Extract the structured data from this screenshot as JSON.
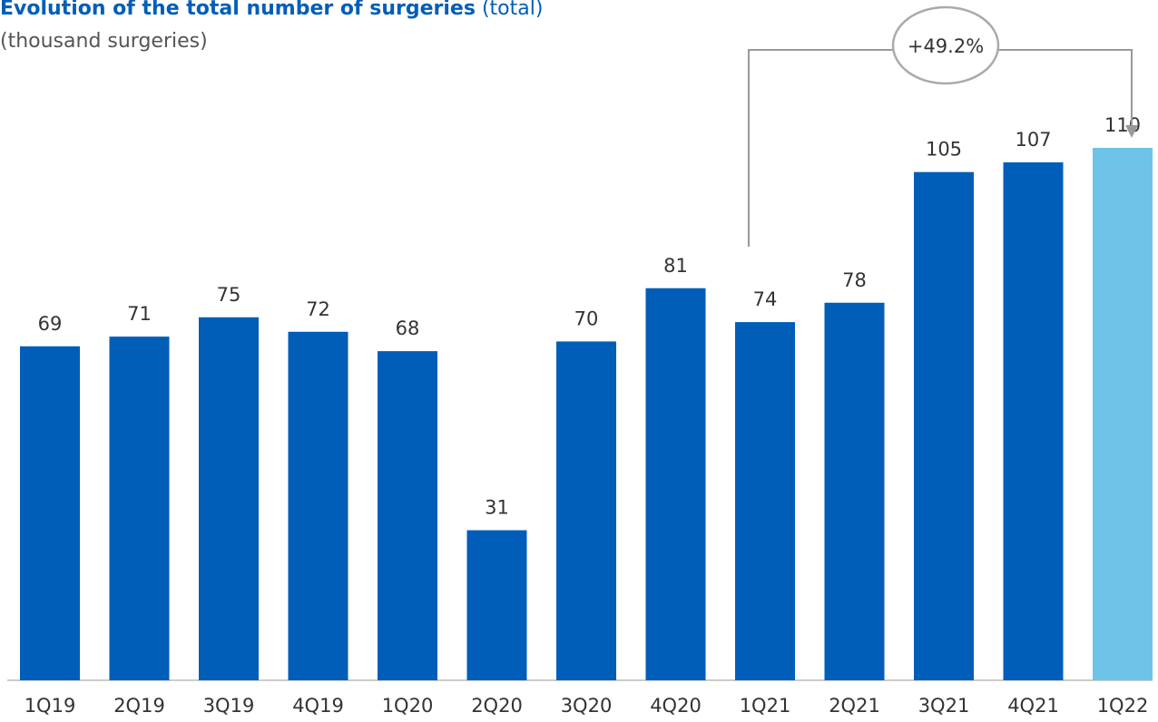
{
  "chart_data": {
    "type": "bar",
    "title": "Evolution of the total number of surgeries",
    "title_note": "(total)",
    "subtitle": "(thousand surgeries)",
    "annotation": "+49.2%",
    "categories": [
      "1Q19",
      "2Q19",
      "3Q19",
      "4Q19",
      "1Q20",
      "2Q20",
      "3Q20",
      "4Q20",
      "1Q21",
      "2Q21",
      "3Q21",
      "4Q21",
      "1Q22"
    ],
    "values": [
      69,
      71,
      75,
      72,
      68,
      31,
      70,
      81,
      74,
      78,
      105,
      107,
      110
    ],
    "colors": [
      "#005eb8",
      "#005eb8",
      "#005eb8",
      "#005eb8",
      "#005eb8",
      "#005eb8",
      "#005eb8",
      "#005eb8",
      "#005eb8",
      "#005eb8",
      "#005eb8",
      "#005eb8",
      "#6ec4e8"
    ]
  }
}
